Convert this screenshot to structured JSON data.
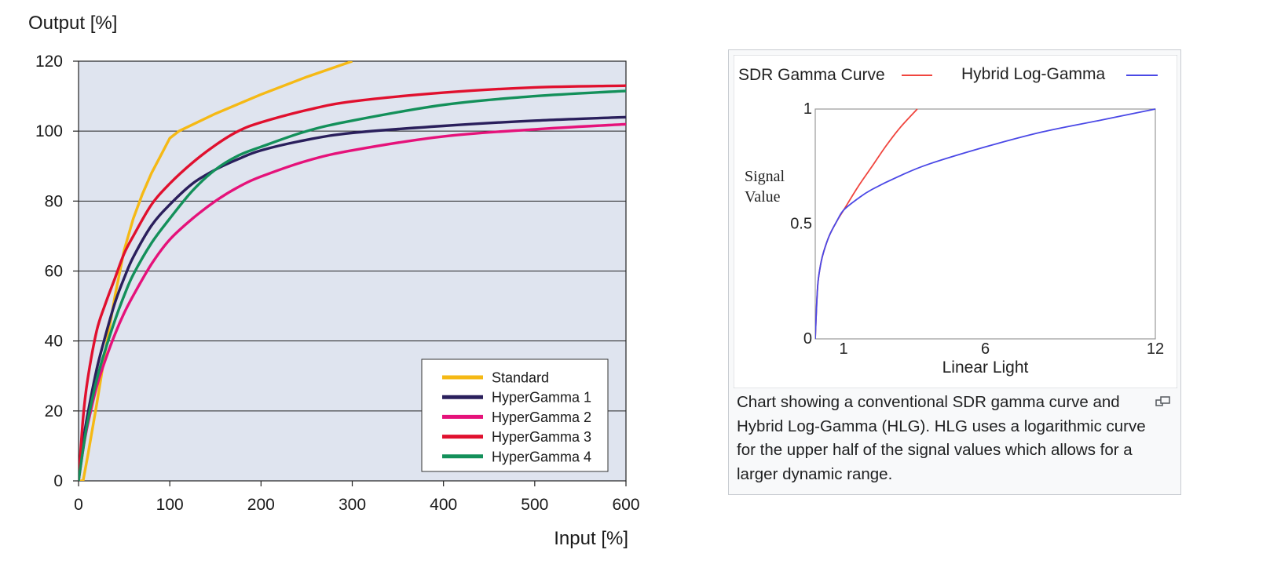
{
  "chart_data": [
    {
      "type": "line",
      "title": "",
      "xlabel": "Input [%]",
      "ylabel": "Output [%]",
      "xlim": [
        0,
        600
      ],
      "ylim": [
        0,
        120
      ],
      "x_ticks": [
        "0",
        "100",
        "200",
        "300",
        "400",
        "500",
        "600"
      ],
      "y_ticks": [
        "0",
        "20",
        "40",
        "60",
        "80",
        "100",
        "120"
      ],
      "grid": "horizontal",
      "legend_position": "bottom-right",
      "colors": {
        "plot_bg": "#dfe4ef",
        "grid": "#222222"
      },
      "series": [
        {
          "name": "Standard",
          "color": "#f5b915",
          "x": [
            0,
            5,
            10,
            20,
            30,
            40,
            50,
            60,
            70,
            80,
            90,
            100,
            110,
            150,
            200,
            250,
            300
          ],
          "y": [
            0,
            0,
            7,
            22,
            38,
            53,
            66,
            75,
            82,
            88,
            93,
            98,
            100,
            105,
            110.5,
            115.5,
            120
          ]
        },
        {
          "name": "HyperGamma 1",
          "color": "#2a1f5c",
          "x": [
            0,
            5,
            10,
            20,
            30,
            40,
            50,
            60,
            80,
            100,
            125,
            150,
            175,
            200,
            250,
            300,
            400,
            500,
            600
          ],
          "y": [
            0,
            11,
            19,
            32,
            42,
            51,
            58,
            64,
            73,
            79,
            85,
            89,
            92,
            94.5,
            97.5,
            99.5,
            101.5,
            103,
            104
          ]
        },
        {
          "name": "HyperGamma 2",
          "color": "#e5127a",
          "x": [
            0,
            5,
            10,
            20,
            30,
            40,
            50,
            60,
            80,
            100,
            125,
            150,
            175,
            200,
            250,
            300,
            400,
            500,
            600
          ],
          "y": [
            0,
            9,
            16,
            27,
            35,
            42,
            48,
            53,
            62,
            69,
            75,
            80,
            84,
            87,
            91.5,
            94.5,
            98.5,
            100.5,
            102
          ]
        },
        {
          "name": "HyperGamma 3",
          "color": "#e0102e",
          "x": [
            0,
            5,
            10,
            20,
            30,
            40,
            50,
            60,
            80,
            100,
            125,
            150,
            175,
            200,
            250,
            300,
            400,
            500,
            600
          ],
          "y": [
            0,
            18,
            29,
            43,
            51,
            58,
            65,
            70,
            79,
            85,
            91,
            96,
            100,
            102.5,
            106,
            108.5,
            111,
            112.5,
            113
          ]
        },
        {
          "name": "HyperGamma 4",
          "color": "#13905a",
          "x": [
            0,
            5,
            10,
            20,
            30,
            40,
            50,
            60,
            80,
            100,
            125,
            150,
            175,
            200,
            250,
            300,
            400,
            500,
            600
          ],
          "y": [
            0,
            9,
            17,
            29,
            38,
            46,
            53,
            59,
            68,
            75,
            83,
            89,
            93,
            95.5,
            100,
            103,
            107.5,
            110,
            111.5
          ]
        }
      ]
    },
    {
      "type": "line",
      "title": "",
      "xlabel": "Linear Light",
      "ylabel": "Signal Value",
      "xlim": [
        0,
        12
      ],
      "ylim": [
        0,
        1
      ],
      "x_ticks": [
        "1",
        "6",
        "12"
      ],
      "y_ticks": [
        "0",
        "0.5",
        "1"
      ],
      "grid": "none",
      "legend_position": "top",
      "colors": {
        "plot_bg": "#ffffff",
        "frame": "#999999"
      },
      "series": [
        {
          "name": "SDR Gamma Curve",
          "color": "#f0453e",
          "x": [
            0,
            0.05,
            0.1,
            0.2,
            0.3,
            0.5,
            0.75,
            1,
            1.5,
            2,
            2.5,
            3,
            3.6
          ],
          "y": [
            0,
            0.15,
            0.25,
            0.33,
            0.38,
            0.45,
            0.51,
            0.56,
            0.66,
            0.75,
            0.84,
            0.92,
            1.0
          ]
        },
        {
          "name": "Hybrid Log-Gamma",
          "color": "#4a48e6",
          "x": [
            0,
            0.05,
            0.1,
            0.2,
            0.3,
            0.5,
            0.75,
            1,
            1.5,
            2,
            3,
            4,
            6,
            8,
            10,
            12
          ],
          "y": [
            0,
            0.15,
            0.25,
            0.33,
            0.38,
            0.45,
            0.51,
            0.56,
            0.61,
            0.65,
            0.71,
            0.76,
            0.835,
            0.9,
            0.95,
            1.0
          ]
        }
      ]
    }
  ],
  "caption": {
    "line1": "Chart showing a conventional SDR gamma curve and",
    "line2": "Hybrid Log-Gamma (HLG). HLG uses a logarithmic curve",
    "line3": "for the upper half of the signal values which allows for a",
    "line4": "larger dynamic range."
  },
  "icons": {
    "enlarge": "enlarge-icon"
  }
}
